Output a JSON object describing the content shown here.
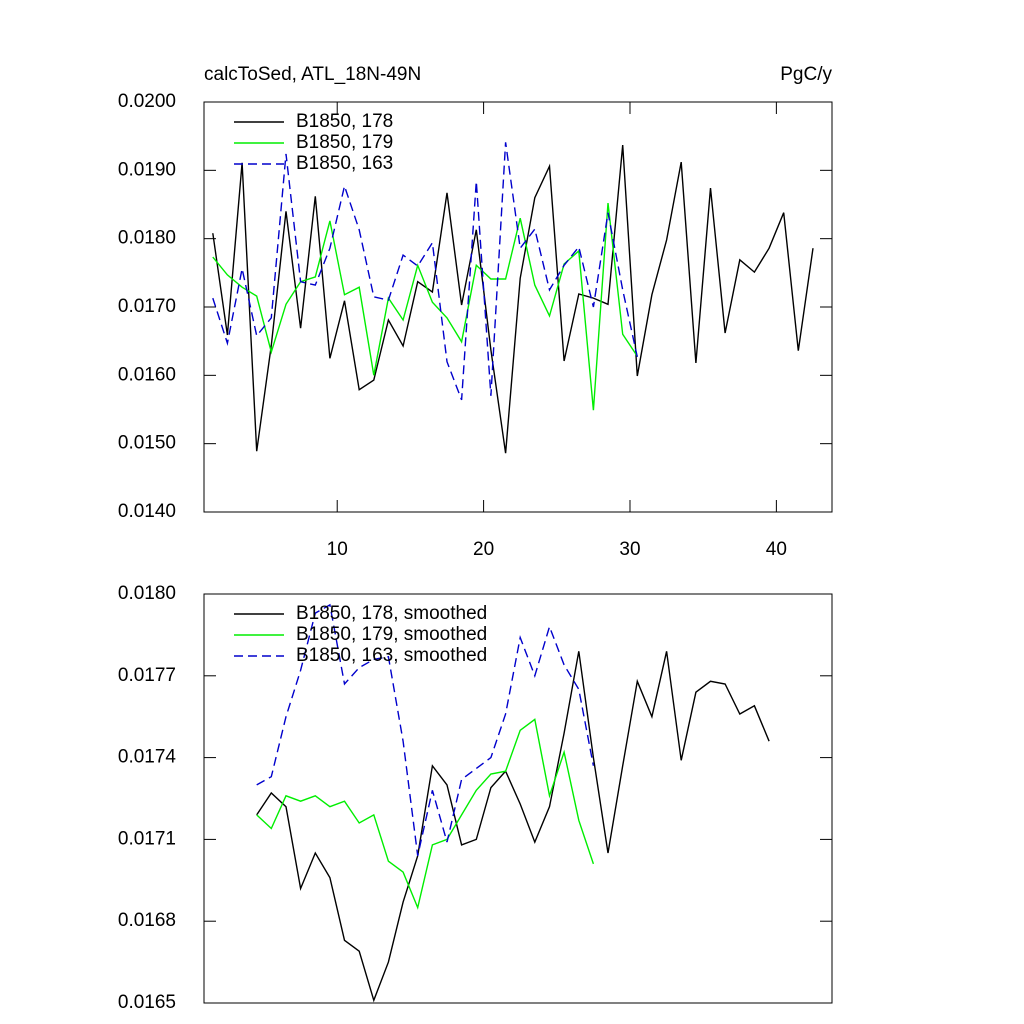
{
  "chart_data": [
    {
      "type": "line",
      "title": "calcToSed, ATL_18N-49N",
      "subtitle": "PgC/y",
      "legend": "upper left",
      "x": [
        1.5,
        2.5,
        3.5,
        4.5,
        5.5,
        6.5,
        7.5,
        8.5,
        9.5,
        10.5,
        11.5,
        12.5,
        13.5,
        14.5,
        15.5,
        16.5,
        17.5,
        18.5,
        19.5,
        20.5,
        21.5,
        22.5,
        23.5,
        24.5,
        25.5,
        26.5,
        27.5,
        28.5,
        29.5,
        30.5,
        31.5,
        32.5,
        33.5,
        34.5,
        35.5,
        36.5,
        37.5,
        38.5,
        39.5,
        40.5,
        41.5,
        42.5
      ],
      "xlim": [
        0.9,
        43.8
      ],
      "xticks": [
        10,
        20,
        30,
        40
      ],
      "ylim": [
        0.014,
        0.02
      ],
      "yticks": [
        {
          "value": 0.014,
          "label": "0.0140"
        },
        {
          "value": 0.015,
          "label": "0.0150"
        },
        {
          "value": 0.016,
          "label": "0.0160"
        },
        {
          "value": 0.017,
          "label": "0.0170"
        },
        {
          "value": 0.018,
          "label": "0.0180"
        },
        {
          "value": 0.019,
          "label": "0.0190"
        },
        {
          "value": 0.02,
          "label": "0.0200"
        }
      ],
      "series": [
        {
          "name": "B1850, 178",
          "color": "#000000",
          "dash": false,
          "values": [
            0.01808,
            0.01659,
            0.01911,
            0.01489,
            0.01644,
            0.0184,
            0.01669,
            0.01862,
            0.01625,
            0.01709,
            0.01579,
            0.01593,
            0.01681,
            0.01643,
            0.01737,
            0.01722,
            0.01867,
            0.01703,
            0.01813,
            0.01637,
            0.01486,
            0.01742,
            0.0186,
            0.01906,
            0.01621,
            0.01719,
            0.01713,
            0.01704,
            0.01937,
            0.01599,
            0.01718,
            0.01798,
            0.01912,
            0.01618,
            0.01874,
            0.01662,
            0.01769,
            0.01751,
            0.01786,
            0.01838,
            0.01636,
            0.01786
          ]
        },
        {
          "name": "B1850, 179",
          "color": "#00ee00",
          "dash": false,
          "values": [
            0.01773,
            0.01747,
            0.01729,
            0.01716,
            0.01634,
            0.01704,
            0.01737,
            0.01744,
            0.01826,
            0.01718,
            0.01729,
            0.016,
            0.01713,
            0.01681,
            0.01761,
            0.01707,
            0.01684,
            0.01649,
            0.01761,
            0.01741,
            0.01741,
            0.0183,
            0.01732,
            0.01687,
            0.01763,
            0.01782,
            0.01549,
            0.01852,
            0.0166,
            0.01628,
            null,
            null,
            null,
            null,
            null,
            null,
            null,
            null,
            null,
            null,
            null,
            null
          ]
        },
        {
          "name": "B1850, 163",
          "color": "#0000cc",
          "dash": true,
          "values": [
            0.01713,
            0.01647,
            0.01756,
            0.01658,
            0.01684,
            0.01924,
            0.01737,
            0.01732,
            0.01786,
            0.01877,
            0.01813,
            0.01715,
            0.0171,
            0.01776,
            0.0176,
            0.01794,
            0.0162,
            0.01564,
            0.01884,
            0.0157,
            0.01941,
            0.01786,
            0.01814,
            0.01725,
            0.01761,
            0.01788,
            0.017,
            0.01838,
            0.01725,
            0.01627,
            null,
            null,
            null,
            null,
            null,
            null,
            null,
            null,
            null,
            null,
            null,
            null
          ]
        }
      ]
    },
    {
      "type": "line",
      "legend": "upper left",
      "x": [
        4.5,
        5.5,
        6.5,
        7.5,
        8.5,
        9.5,
        10.5,
        11.5,
        12.5,
        13.5,
        14.5,
        15.5,
        16.5,
        17.5,
        18.5,
        19.5,
        20.5,
        21.5,
        22.5,
        23.5,
        24.5,
        25.5,
        26.5,
        27.5,
        28.5,
        29.5,
        30.5,
        31.5,
        32.5,
        33.5,
        34.5,
        35.5,
        36.5,
        37.5,
        38.5,
        39.5
      ],
      "xlim": [
        0.9,
        43.8
      ],
      "ylim": [
        0.0165,
        0.018
      ],
      "yticks": [
        {
          "value": 0.0165,
          "label": "0.0165"
        },
        {
          "value": 0.0168,
          "label": "0.0168"
        },
        {
          "value": 0.0171,
          "label": "0.0171"
        },
        {
          "value": 0.0174,
          "label": "0.0174"
        },
        {
          "value": 0.0177,
          "label": "0.0177"
        },
        {
          "value": 0.018,
          "label": "0.0180"
        }
      ],
      "series": [
        {
          "name": "B1850, 178, smoothed",
          "color": "#000000",
          "dash": false,
          "values": [
            0.01719,
            0.01727,
            0.01722,
            0.01692,
            0.01705,
            0.01696,
            0.01673,
            0.01669,
            0.01651,
            0.01665,
            0.01687,
            0.01704,
            0.01737,
            0.0173,
            0.01708,
            0.0171,
            0.01729,
            0.01735,
            0.01723,
            0.01709,
            0.01722,
            0.01749,
            0.01779,
            0.0174,
            0.01705,
            0.01737,
            0.01768,
            0.01755,
            0.01779,
            0.01739,
            0.01764,
            0.01768,
            0.01767,
            0.01756,
            0.01759,
            0.01746
          ]
        },
        {
          "name": "B1850, 179, smoothed",
          "color": "#00ee00",
          "dash": false,
          "values": [
            0.01719,
            0.01714,
            0.01726,
            0.01724,
            0.01726,
            0.01722,
            0.01724,
            0.01716,
            0.01719,
            0.01702,
            0.01698,
            0.01685,
            0.01708,
            0.0171,
            0.01719,
            0.01728,
            0.01734,
            0.01735,
            0.0175,
            0.01754,
            0.01726,
            0.01742,
            0.01717,
            0.01701,
            null,
            null,
            null,
            null,
            null,
            null,
            null,
            null,
            null,
            null,
            null,
            null
          ]
        },
        {
          "name": "B1850, 163, smoothed",
          "color": "#0000cc",
          "dash": true,
          "values": [
            0.0173,
            0.01733,
            0.01755,
            0.01772,
            0.01793,
            0.01796,
            0.01767,
            0.01773,
            0.01776,
            0.01777,
            0.01746,
            0.01704,
            0.01728,
            0.01709,
            0.01732,
            0.01736,
            0.0174,
            0.01756,
            0.01784,
            0.0177,
            0.01788,
            0.01774,
            0.01765,
            0.01737,
            null,
            null,
            null,
            null,
            null,
            null,
            null,
            null,
            null,
            null,
            null,
            null
          ]
        }
      ]
    }
  ]
}
